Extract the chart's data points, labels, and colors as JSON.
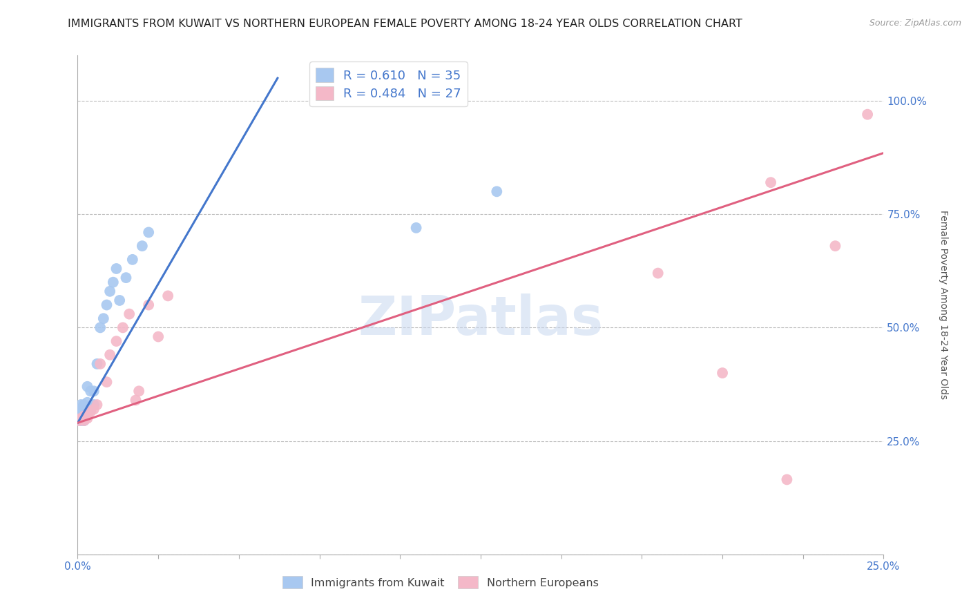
{
  "title": "IMMIGRANTS FROM KUWAIT VS NORTHERN EUROPEAN FEMALE POVERTY AMONG 18-24 YEAR OLDS CORRELATION CHART",
  "source": "Source: ZipAtlas.com",
  "ylabel_label": "Female Poverty Among 18-24 Year Olds",
  "x_min": 0.0,
  "x_max": 0.25,
  "y_min": 0.0,
  "y_max": 1.1,
  "blue_color": "#a8c8f0",
  "blue_line_color": "#4477cc",
  "pink_color": "#f4b8c8",
  "pink_line_color": "#e06080",
  "legend_R_blue": "R = 0.610",
  "legend_N_blue": "N = 35",
  "legend_R_pink": "R = 0.484",
  "legend_N_pink": "N = 27",
  "legend_label_blue": "Immigrants from Kuwait",
  "legend_label_pink": "Northern Europeans",
  "watermark": "ZIPatlas",
  "blue_points_x": [
    0.0005,
    0.0005,
    0.001,
    0.001,
    0.001,
    0.001,
    0.0015,
    0.0015,
    0.0015,
    0.002,
    0.002,
    0.002,
    0.002,
    0.003,
    0.003,
    0.003,
    0.003,
    0.004,
    0.004,
    0.005,
    0.005,
    0.006,
    0.007,
    0.008,
    0.009,
    0.01,
    0.011,
    0.012,
    0.013,
    0.015,
    0.017,
    0.02,
    0.022,
    0.105,
    0.13
  ],
  "blue_points_y": [
    0.3,
    0.32,
    0.295,
    0.305,
    0.315,
    0.33,
    0.3,
    0.31,
    0.315,
    0.295,
    0.31,
    0.315,
    0.33,
    0.31,
    0.32,
    0.335,
    0.37,
    0.32,
    0.36,
    0.33,
    0.36,
    0.42,
    0.5,
    0.52,
    0.55,
    0.58,
    0.6,
    0.63,
    0.56,
    0.61,
    0.65,
    0.68,
    0.71,
    0.72,
    0.8
  ],
  "pink_points_x": [
    0.0005,
    0.001,
    0.0015,
    0.002,
    0.002,
    0.003,
    0.003,
    0.004,
    0.005,
    0.006,
    0.007,
    0.009,
    0.01,
    0.012,
    0.014,
    0.016,
    0.018,
    0.019,
    0.022,
    0.025,
    0.028,
    0.18,
    0.2,
    0.215,
    0.22,
    0.235,
    0.245
  ],
  "pink_points_y": [
    0.295,
    0.3,
    0.3,
    0.295,
    0.305,
    0.3,
    0.305,
    0.315,
    0.32,
    0.33,
    0.42,
    0.38,
    0.44,
    0.47,
    0.5,
    0.53,
    0.34,
    0.36,
    0.55,
    0.48,
    0.57,
    0.62,
    0.4,
    0.82,
    0.165,
    0.68,
    0.97
  ],
  "blue_trend_x": [
    0.0,
    0.062
  ],
  "blue_trend_y": [
    0.29,
    1.05
  ],
  "pink_trend_x": [
    0.0,
    0.25
  ],
  "pink_trend_y": [
    0.29,
    0.885
  ],
  "background_color": "#ffffff",
  "grid_color": "#bbbbbb",
  "title_fontsize": 11.5,
  "axis_label_fontsize": 10,
  "tick_fontsize": 11
}
